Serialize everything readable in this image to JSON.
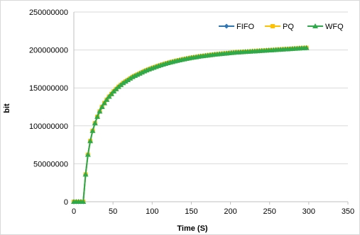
{
  "chart_data": {
    "type": "line",
    "title": "",
    "xlabel": "Time (S)",
    "ylabel": "bit",
    "xlim": [
      0,
      350
    ],
    "ylim": [
      0,
      250000000
    ],
    "x_ticks": [
      "0",
      "50",
      "100",
      "150",
      "200",
      "250",
      "300",
      "350"
    ],
    "y_ticks": [
      "0",
      "50000000",
      "100000000",
      "150000000",
      "200000000",
      "250000000"
    ],
    "grid": "horizontal",
    "legend": "top-right",
    "x": [
      0,
      3,
      6,
      9,
      12,
      15,
      18,
      21,
      24,
      27,
      30,
      33,
      36,
      39,
      42,
      45,
      48,
      51,
      54,
      57,
      60,
      63,
      66,
      69,
      72,
      75,
      78,
      81,
      84,
      87,
      90,
      93,
      96,
      99,
      102,
      105,
      108,
      111,
      114,
      117,
      120,
      123,
      126,
      129,
      132,
      135,
      138,
      141,
      144,
      147,
      150,
      153,
      156,
      159,
      162,
      165,
      168,
      171,
      174,
      177,
      180,
      183,
      186,
      189,
      192,
      195,
      198,
      201,
      204,
      207,
      210,
      213,
      216,
      219,
      222,
      225,
      228,
      231,
      234,
      237,
      240,
      243,
      246,
      249,
      252,
      255,
      258,
      261,
      264,
      267,
      270,
      273,
      276,
      279,
      282,
      285,
      288,
      291,
      294,
      297
    ],
    "series": [
      {
        "name": "FIFO",
        "color": "#2e75b6",
        "marker": "diamond",
        "values": [
          0,
          0,
          0,
          0,
          0,
          36000000,
          62000000,
          80000000,
          93500000,
          103500000,
          112000000,
          119000000,
          125000000,
          130000000,
          134500000,
          138500000,
          142000000,
          145500000,
          148500000,
          151500000,
          154000000,
          156500000,
          158500000,
          160500000,
          162500000,
          164500000,
          166000000,
          167500000,
          169000000,
          170500000,
          172000000,
          173300000,
          174500000,
          175700000,
          176800000,
          177900000,
          179000000,
          180000000,
          181000000,
          181900000,
          182800000,
          183600000,
          184400000,
          185200000,
          185900000,
          186600000,
          187300000,
          187900000,
          188500000,
          189100000,
          189700000,
          190200000,
          190700000,
          191200000,
          191700000,
          192100000,
          192500000,
          192900000,
          193300000,
          193700000,
          194100000,
          194400000,
          194700000,
          195000000,
          195300000,
          195600000,
          195900000,
          196200000,
          196500000,
          196800000,
          197000000,
          197200000,
          197400000,
          197600000,
          197800000,
          198000000,
          198200000,
          198400000,
          198600000,
          198800000,
          199000000,
          199200000,
          199400000,
          199600000,
          199800000,
          200000000,
          200200000,
          200400000,
          200600000,
          200800000,
          201000000,
          201200000,
          201400000,
          201600000,
          201800000,
          202000000,
          202200000,
          202400000,
          202600000,
          202800000
        ]
      },
      {
        "name": "PQ",
        "color": "#ffc000",
        "marker": "square",
        "values": [
          0,
          0,
          0,
          0,
          0,
          36000000,
          62000000,
          80000000,
          93500000,
          103500000,
          112000000,
          119000000,
          125000000,
          130000000,
          134500000,
          138500000,
          142000000,
          145500000,
          148500000,
          151500000,
          154000000,
          156500000,
          158500000,
          160500000,
          162500000,
          164500000,
          166000000,
          167500000,
          169000000,
          170500000,
          172000000,
          173300000,
          174500000,
          175700000,
          176800000,
          177900000,
          179000000,
          180000000,
          181000000,
          181900000,
          182800000,
          183600000,
          184400000,
          185200000,
          185900000,
          186600000,
          187300000,
          187900000,
          188500000,
          189100000,
          189700000,
          190200000,
          190700000,
          191200000,
          191700000,
          192100000,
          192500000,
          192900000,
          193300000,
          193700000,
          194100000,
          194400000,
          194700000,
          195000000,
          195300000,
          195600000,
          195900000,
          196200000,
          196500000,
          196800000,
          197000000,
          197200000,
          197400000,
          197600000,
          197800000,
          198000000,
          198200000,
          198400000,
          198600000,
          198800000,
          199000000,
          199200000,
          199400000,
          199600000,
          199800000,
          200000000,
          200200000,
          200400000,
          200600000,
          200800000,
          201000000,
          201200000,
          201400000,
          201600000,
          201800000,
          202000000,
          202200000,
          202400000,
          202600000,
          202800000
        ]
      },
      {
        "name": "WFQ",
        "color": "#2eaa4a",
        "marker": "triangle",
        "values": [
          0,
          0,
          0,
          0,
          0,
          36000000,
          62000000,
          80000000,
          93500000,
          103500000,
          112000000,
          119000000,
          125000000,
          130000000,
          134500000,
          138500000,
          142000000,
          145500000,
          148500000,
          151500000,
          154000000,
          156500000,
          158500000,
          160500000,
          162500000,
          164500000,
          166000000,
          167500000,
          169000000,
          170500000,
          172000000,
          173300000,
          174500000,
          175700000,
          176800000,
          177900000,
          179000000,
          180000000,
          181000000,
          181900000,
          182800000,
          183600000,
          184400000,
          185200000,
          185900000,
          186600000,
          187300000,
          187900000,
          188500000,
          189100000,
          189700000,
          190200000,
          190700000,
          191200000,
          191700000,
          192100000,
          192500000,
          192900000,
          193300000,
          193700000,
          194100000,
          194400000,
          194700000,
          195000000,
          195300000,
          195600000,
          195900000,
          196200000,
          196500000,
          196800000,
          197000000,
          197200000,
          197400000,
          197600000,
          197800000,
          198000000,
          198200000,
          198400000,
          198600000,
          198800000,
          199000000,
          199200000,
          199400000,
          199600000,
          199800000,
          200000000,
          200200000,
          200400000,
          200600000,
          200800000,
          201000000,
          201200000,
          201400000,
          201600000,
          201800000,
          202000000,
          202200000,
          202400000,
          202600000,
          202800000
        ]
      }
    ]
  }
}
